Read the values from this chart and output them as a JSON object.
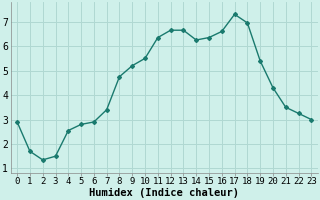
{
  "x": [
    0,
    1,
    2,
    3,
    4,
    5,
    6,
    7,
    8,
    9,
    10,
    11,
    12,
    13,
    14,
    15,
    16,
    17,
    18,
    19,
    20,
    21,
    22,
    23
  ],
  "y": [
    2.9,
    1.7,
    1.35,
    1.5,
    2.55,
    2.8,
    2.9,
    3.4,
    4.75,
    5.2,
    5.5,
    6.35,
    6.65,
    6.65,
    6.25,
    6.35,
    6.6,
    7.3,
    6.95,
    5.4,
    4.3,
    3.5,
    3.25,
    3.0
  ],
  "line_color": "#1a7a6e",
  "marker": "D",
  "markersize": 2.0,
  "bg_color": "#cff0ea",
  "grid_color": "#b0d8d2",
  "xlabel": "Humidex (Indice chaleur)",
  "xlim": [
    -0.5,
    23.5
  ],
  "ylim": [
    0.8,
    7.8
  ],
  "yticks": [
    1,
    2,
    3,
    4,
    5,
    6,
    7
  ],
  "xticks": [
    0,
    1,
    2,
    3,
    4,
    5,
    6,
    7,
    8,
    9,
    10,
    11,
    12,
    13,
    14,
    15,
    16,
    17,
    18,
    19,
    20,
    21,
    22,
    23
  ],
  "xtick_labels": [
    "0",
    "1",
    "2",
    "3",
    "4",
    "5",
    "6",
    "7",
    "8",
    "9",
    "10",
    "11",
    "12",
    "13",
    "14",
    "15",
    "16",
    "17",
    "18",
    "19",
    "20",
    "21",
    "22",
    "23"
  ],
  "linewidth": 1.0,
  "tick_fontsize": 6.5,
  "xlabel_fontsize": 7.5
}
